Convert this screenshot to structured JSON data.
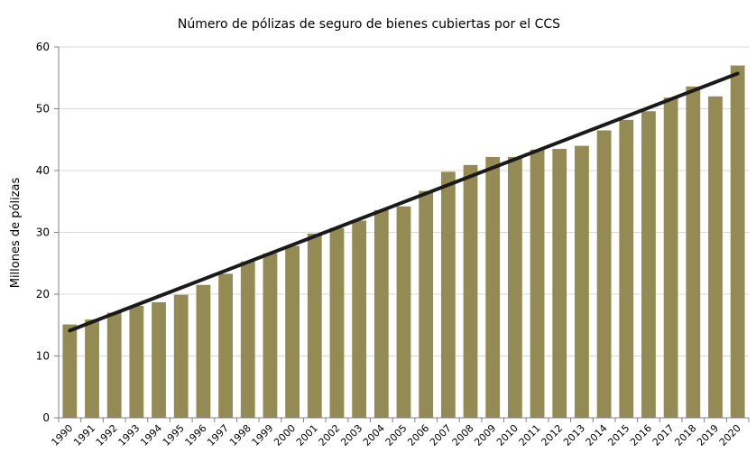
{
  "chart_data": {
    "type": "bar",
    "title": "Número  de pólizas de seguro de bienes cubiertas por el CCS",
    "xlabel": "",
    "ylabel": "Millones de pólizas",
    "ylim": [
      0,
      60
    ],
    "yticks": [
      "0",
      "10",
      "20",
      "30",
      "40",
      "50",
      "60"
    ],
    "categories": [
      "1990",
      "1991",
      "1992",
      "1993",
      "1994",
      "1995",
      "1996",
      "1997",
      "1998",
      "1999",
      "2000",
      "2001",
      "2002",
      "2003",
      "2004",
      "2005",
      "2006",
      "2007",
      "2008",
      "2009",
      "2010",
      "2011",
      "2012",
      "2013",
      "2014",
      "2015",
      "2016",
      "2017",
      "2018",
      "2019",
      "2020"
    ],
    "values": [
      15.1,
      15.9,
      17.0,
      18.1,
      18.7,
      19.9,
      21.5,
      23.3,
      25.3,
      26.6,
      27.8,
      29.8,
      30.7,
      31.9,
      33.6,
      34.2,
      36.7,
      39.8,
      40.9,
      42.2,
      42.2,
      43.4,
      43.5,
      44.0,
      46.5,
      48.2,
      49.6,
      51.8,
      53.6,
      52.0,
      57.0
    ],
    "trendline": {
      "type": "linear",
      "start": 14.1,
      "end": 55.7
    },
    "grid": true,
    "colors": {
      "bar": "#948A54",
      "trend": "#1A1A1A",
      "grid": "#D9D9D9",
      "axis": "#808080"
    }
  }
}
